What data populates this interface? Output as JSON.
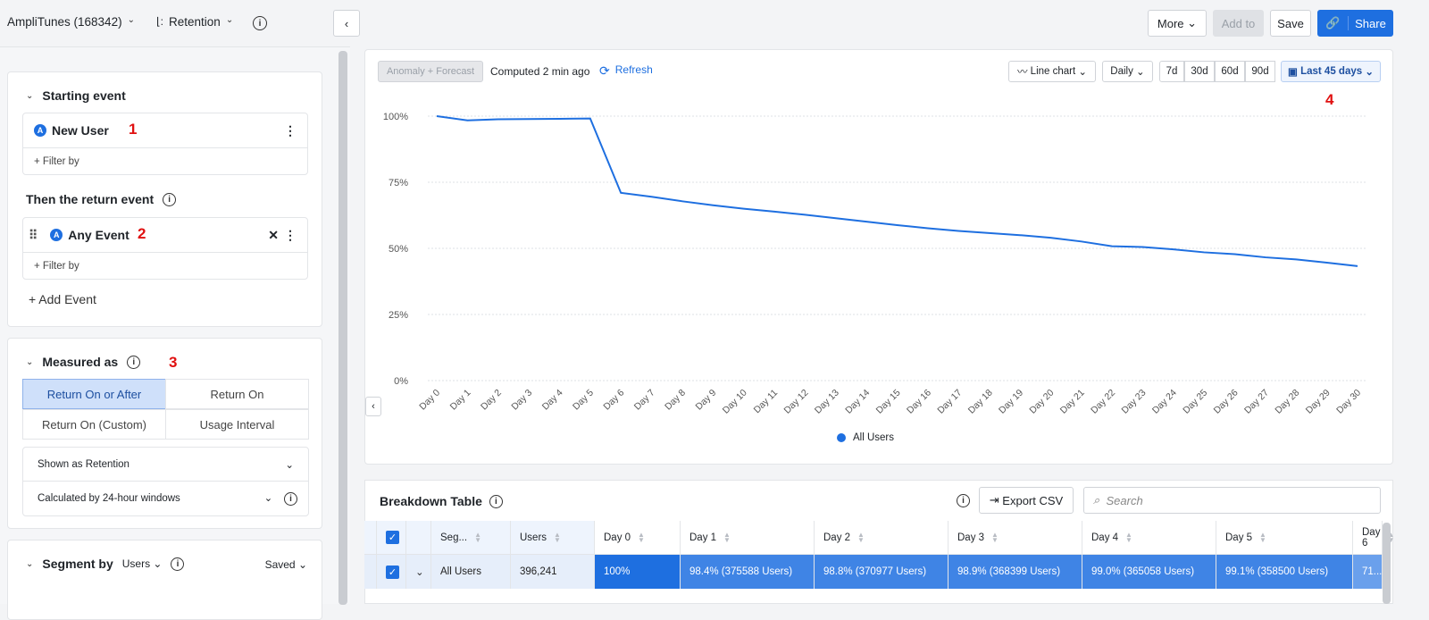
{
  "header": {
    "project": "AmpliTunes (168342)",
    "chart_type": "Retention",
    "more": "More",
    "add_to": "Add to",
    "save": "Save",
    "share": "Share"
  },
  "left": {
    "starting_event": {
      "title": "Starting event",
      "event": "New User",
      "filter": "+ Filter by",
      "marker": "1"
    },
    "return_event": {
      "title": "Then the return event",
      "event": "Any Event",
      "filter": "+ Filter by",
      "marker": "2",
      "add": "+ Add Event"
    },
    "measured": {
      "title": "Measured as",
      "marker": "3",
      "options": [
        "Return On or After",
        "Return On",
        "Return On (Custom)",
        "Usage Interval"
      ],
      "selected": "Return On or After",
      "shown_as": "Shown as Retention",
      "calculated_by": "Calculated by 24-hour windows"
    },
    "segment": {
      "title": "Segment by",
      "type": "Users",
      "saved": "Saved"
    }
  },
  "toolbar": {
    "anomaly": "Anomaly + Forecast",
    "computed": "Computed 2 min ago",
    "refresh": "Refresh",
    "chart_type": "Line chart",
    "interval": "Daily",
    "ranges": [
      "7d",
      "30d",
      "60d",
      "90d"
    ],
    "date_range": "Last 45 days",
    "marker": "4"
  },
  "chart_data": {
    "type": "line",
    "x": [
      "Day 0",
      "Day 1",
      "Day 2",
      "Day 3",
      "Day 4",
      "Day 5",
      "Day 6",
      "Day 7",
      "Day 8",
      "Day 9",
      "Day 10",
      "Day 11",
      "Day 12",
      "Day 13",
      "Day 14",
      "Day 15",
      "Day 16",
      "Day 17",
      "Day 18",
      "Day 19",
      "Day 20",
      "Day 21",
      "Day 22",
      "Day 23",
      "Day 24",
      "Day 25",
      "Day 26",
      "Day 27",
      "Day 28",
      "Day 29",
      "Day 30"
    ],
    "series": [
      {
        "name": "All Users",
        "color": "#1e6fe0",
        "values": [
          100,
          98.4,
          98.8,
          98.9,
          99.0,
          99.1,
          71,
          69.5,
          67.8,
          66.3,
          65,
          63.9,
          62.7,
          61.4,
          60.1,
          58.8,
          57.6,
          56.6,
          55.8,
          55,
          54,
          52.6,
          50.8,
          50.5,
          49.6,
          48.5,
          47.8,
          46.6,
          45.8,
          44.6,
          43.3
        ]
      }
    ],
    "yticks": [
      "0%",
      "25%",
      "50%",
      "75%",
      "100%"
    ],
    "ylim": [
      0,
      100
    ],
    "grid": true,
    "legend": "bottom"
  },
  "table": {
    "title": "Breakdown Table",
    "export": "Export CSV",
    "search_placeholder": "Search",
    "columns": [
      "Seg...",
      "Users",
      "Day 0",
      "Day 1",
      "Day 2",
      "Day 3",
      "Day 4",
      "Day 5",
      "Day 6"
    ],
    "rows": [
      {
        "segment": "All Users",
        "users": "396,241",
        "cells": [
          "100%",
          "98.4% (375588 Users)",
          "98.8% (370977 Users)",
          "98.9% (368399 Users)",
          "99.0% (365058 Users)",
          "99.1% (358500 Users)",
          "71..."
        ]
      }
    ]
  }
}
